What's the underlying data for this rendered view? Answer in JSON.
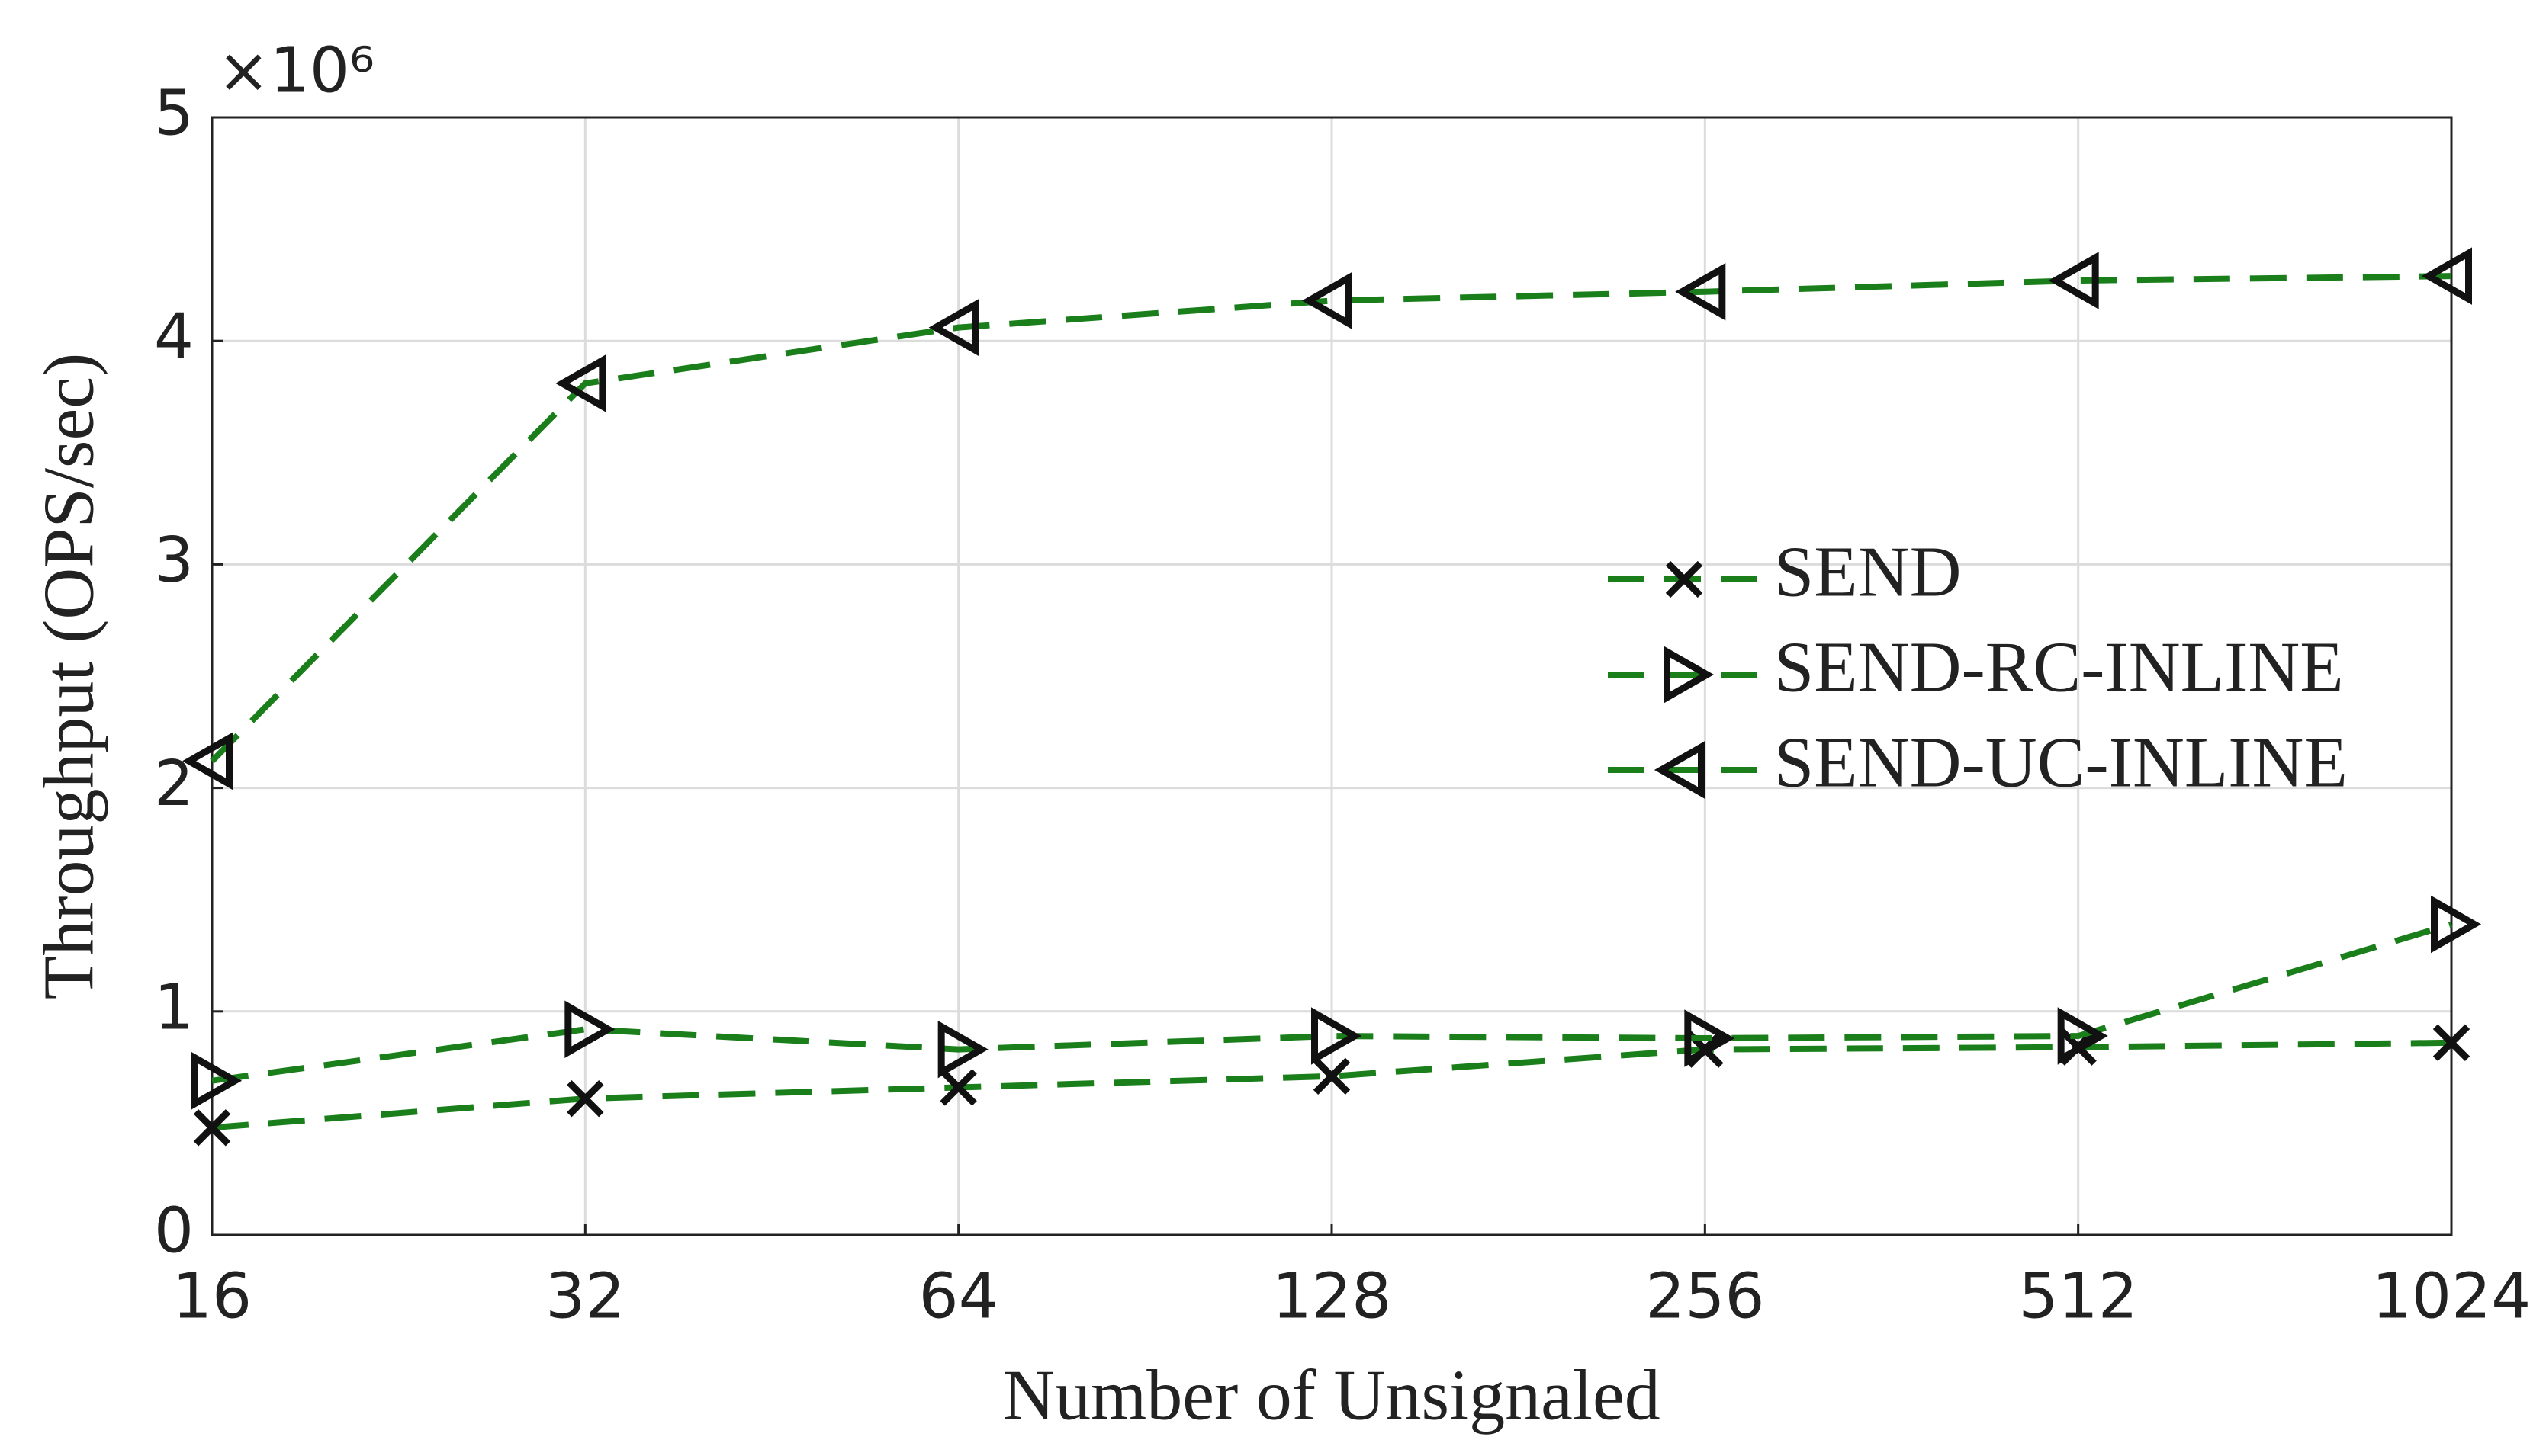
{
  "chart_data": {
    "type": "line",
    "y_scale_label": "×10⁶",
    "xlabel": "Number of Unsignaled",
    "ylabel": "Throughput (OPS/sec)",
    "x": [
      16,
      32,
      64,
      128,
      256,
      512,
      1024
    ],
    "xscale": "log",
    "xlim": [
      16,
      1024
    ],
    "xticks": [
      16,
      32,
      64,
      128,
      256,
      512,
      1024
    ],
    "ylim": [
      0,
      5
    ],
    "yticks": [
      0,
      1,
      2,
      3,
      4,
      5
    ],
    "grid": true,
    "legend": "right",
    "series": [
      {
        "name": "SEND",
        "color": "#1a7f1a",
        "marker": "x",
        "values": [
          0.48,
          0.61,
          0.66,
          0.71,
          0.83,
          0.84,
          0.86
        ]
      },
      {
        "name": "SEND-RC-INLINE",
        "color": "#1a7f1a",
        "marker": "triangle-right",
        "values": [
          0.69,
          0.92,
          0.83,
          0.89,
          0.88,
          0.89,
          1.39
        ]
      },
      {
        "name": "SEND-UC-INLINE",
        "color": "#1a7f1a",
        "marker": "triangle-left",
        "values": [
          2.12,
          3.81,
          4.06,
          4.18,
          4.22,
          4.27,
          4.29
        ]
      }
    ]
  }
}
